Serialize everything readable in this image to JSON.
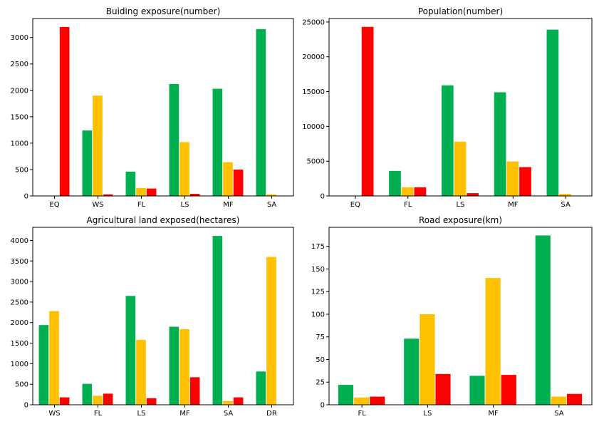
{
  "colors": {
    "green": "#00b050",
    "amber": "#ffc000",
    "red": "#ff0000"
  },
  "chart_data": [
    {
      "type": "bar",
      "title": "Buiding exposure(number)",
      "categories": [
        "EQ",
        "WS",
        "FL",
        "LS",
        "MF",
        "SA"
      ],
      "series": [
        {
          "color": "green",
          "values": [
            0,
            1240,
            460,
            2120,
            2030,
            3160
          ]
        },
        {
          "color": "amber",
          "values": [
            0,
            1900,
            150,
            1020,
            640,
            30
          ]
        },
        {
          "color": "red",
          "values": [
            3200,
            30,
            140,
            40,
            500,
            0
          ]
        }
      ],
      "ylim": [
        0,
        3360
      ],
      "yticks": [
        0,
        500,
        1000,
        1500,
        2000,
        2500,
        3000
      ],
      "ytick_labels": [
        "0",
        "500",
        "1000",
        "1500",
        "2000",
        "2500",
        "3000"
      ],
      "grid": false
    },
    {
      "type": "bar",
      "title": "Population(number)",
      "categories": [
        "EQ",
        "FL",
        "LS",
        "MF",
        "SA"
      ],
      "series": [
        {
          "color": "green",
          "values": [
            0,
            3600,
            15900,
            14900,
            23900
          ]
        },
        {
          "color": "amber",
          "values": [
            0,
            1250,
            7800,
            4950,
            300
          ]
        },
        {
          "color": "red",
          "values": [
            24300,
            1250,
            400,
            4150,
            0
          ]
        }
      ],
      "ylim": [
        0,
        25500
      ],
      "yticks": [
        0,
        5000,
        10000,
        15000,
        20000,
        25000
      ],
      "ytick_labels": [
        "0",
        "5000",
        "10000",
        "15000",
        "20000",
        "25000"
      ],
      "grid": false
    },
    {
      "type": "bar",
      "title": "Agricultural land exposed(hectares)",
      "categories": [
        "WS",
        "FL",
        "LS",
        "MF",
        "SA",
        "DR"
      ],
      "series": [
        {
          "color": "green",
          "values": [
            1940,
            510,
            2650,
            1900,
            4110,
            810
          ]
        },
        {
          "color": "amber",
          "values": [
            2280,
            220,
            1580,
            1840,
            90,
            3600
          ]
        },
        {
          "color": "red",
          "values": [
            180,
            270,
            160,
            670,
            180,
            0
          ]
        }
      ],
      "ylim": [
        0,
        4320
      ],
      "yticks": [
        0,
        500,
        1000,
        1500,
        2000,
        2500,
        3000,
        3500,
        4000
      ],
      "ytick_labels": [
        "0",
        "500",
        "1000",
        "1500",
        "2000",
        "2500",
        "3000",
        "3500",
        "4000"
      ],
      "grid": false
    },
    {
      "type": "bar",
      "title": "Road exposure(km)",
      "categories": [
        "FL",
        "LS",
        "MF",
        "SA"
      ],
      "series": [
        {
          "color": "green",
          "values": [
            22,
            73,
            32,
            187
          ]
        },
        {
          "color": "amber",
          "values": [
            8,
            100,
            140,
            9
          ]
        },
        {
          "color": "red",
          "values": [
            9,
            34,
            33,
            12
          ]
        }
      ],
      "ylim": [
        0,
        196
      ],
      "yticks": [
        0,
        25,
        50,
        75,
        100,
        125,
        150,
        175
      ],
      "ytick_labels": [
        "0",
        "25",
        "50",
        "75",
        "100",
        "125",
        "150",
        "175"
      ],
      "grid": false
    }
  ]
}
